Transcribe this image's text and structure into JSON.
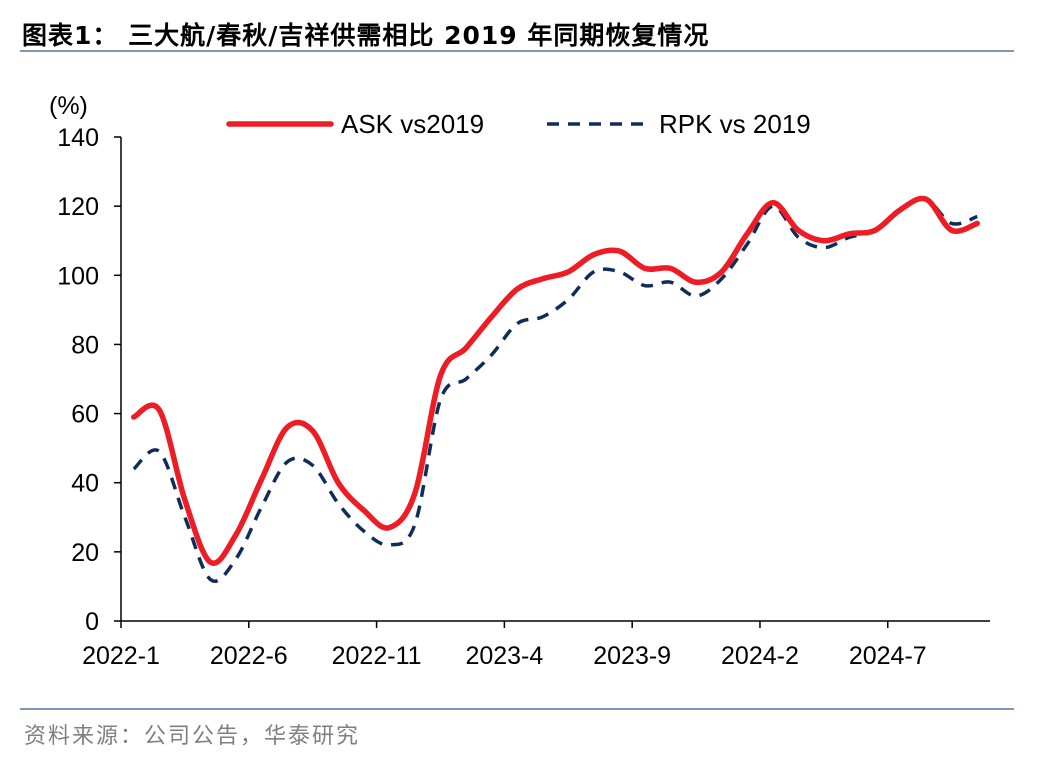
{
  "header": {
    "title": "图表1：  三大航/春秋/吉祥供需相比 2019 年同期恢复情况"
  },
  "footer": {
    "source": "资料来源：公司公告，华泰研究"
  },
  "colors": {
    "ask": "#ee1c25",
    "rpk": "#0e2d5c",
    "rule": "#7f96b2",
    "footer_text": "#7f7f7f"
  },
  "chart_data": {
    "type": "line",
    "title": "",
    "ylabel": "(%)",
    "xlabel": "",
    "ylim": [
      0,
      140
    ],
    "yticks": [
      0,
      20,
      40,
      60,
      80,
      100,
      120,
      140
    ],
    "xtick_labels": [
      "2022-1",
      "2022-6",
      "2022-11",
      "2023-4",
      "2023-9",
      "2024-2",
      "2024-7"
    ],
    "categories": [
      "2022-1",
      "2022-2",
      "2022-3",
      "2022-4",
      "2022-5",
      "2022-6",
      "2022-7",
      "2022-8",
      "2022-9",
      "2022-10",
      "2022-11",
      "2022-12",
      "2023-1",
      "2023-2",
      "2023-3",
      "2023-4",
      "2023-5",
      "2023-6",
      "2023-7",
      "2023-8",
      "2023-9",
      "2023-10",
      "2023-11",
      "2023-12",
      "2024-1",
      "2024-2",
      "2024-3",
      "2024-4",
      "2024-5",
      "2024-6",
      "2024-7",
      "2024-8",
      "2024-9",
      "2024-10"
    ],
    "legend_position": "top",
    "series": [
      {
        "name": "ASK vs2019",
        "style": "solid",
        "values": [
          59,
          61,
          35,
          17,
          25,
          41,
          56,
          55,
          40,
          32,
          27,
          37,
          71,
          79,
          88,
          96,
          99,
          101,
          106,
          107,
          102,
          102,
          98,
          101,
          112,
          121,
          113,
          110,
          112,
          113,
          119,
          122,
          113,
          115
        ]
      },
      {
        "name": "RPK vs 2019",
        "style": "dashed",
        "values": [
          44,
          49,
          30,
          12,
          18,
          33,
          46,
          45,
          34,
          26,
          22,
          28,
          64,
          70,
          77,
          86,
          88,
          93,
          101,
          101,
          97,
          98,
          94,
          99,
          109,
          120,
          111,
          108,
          111,
          113,
          119,
          122,
          115,
          117
        ]
      }
    ]
  }
}
